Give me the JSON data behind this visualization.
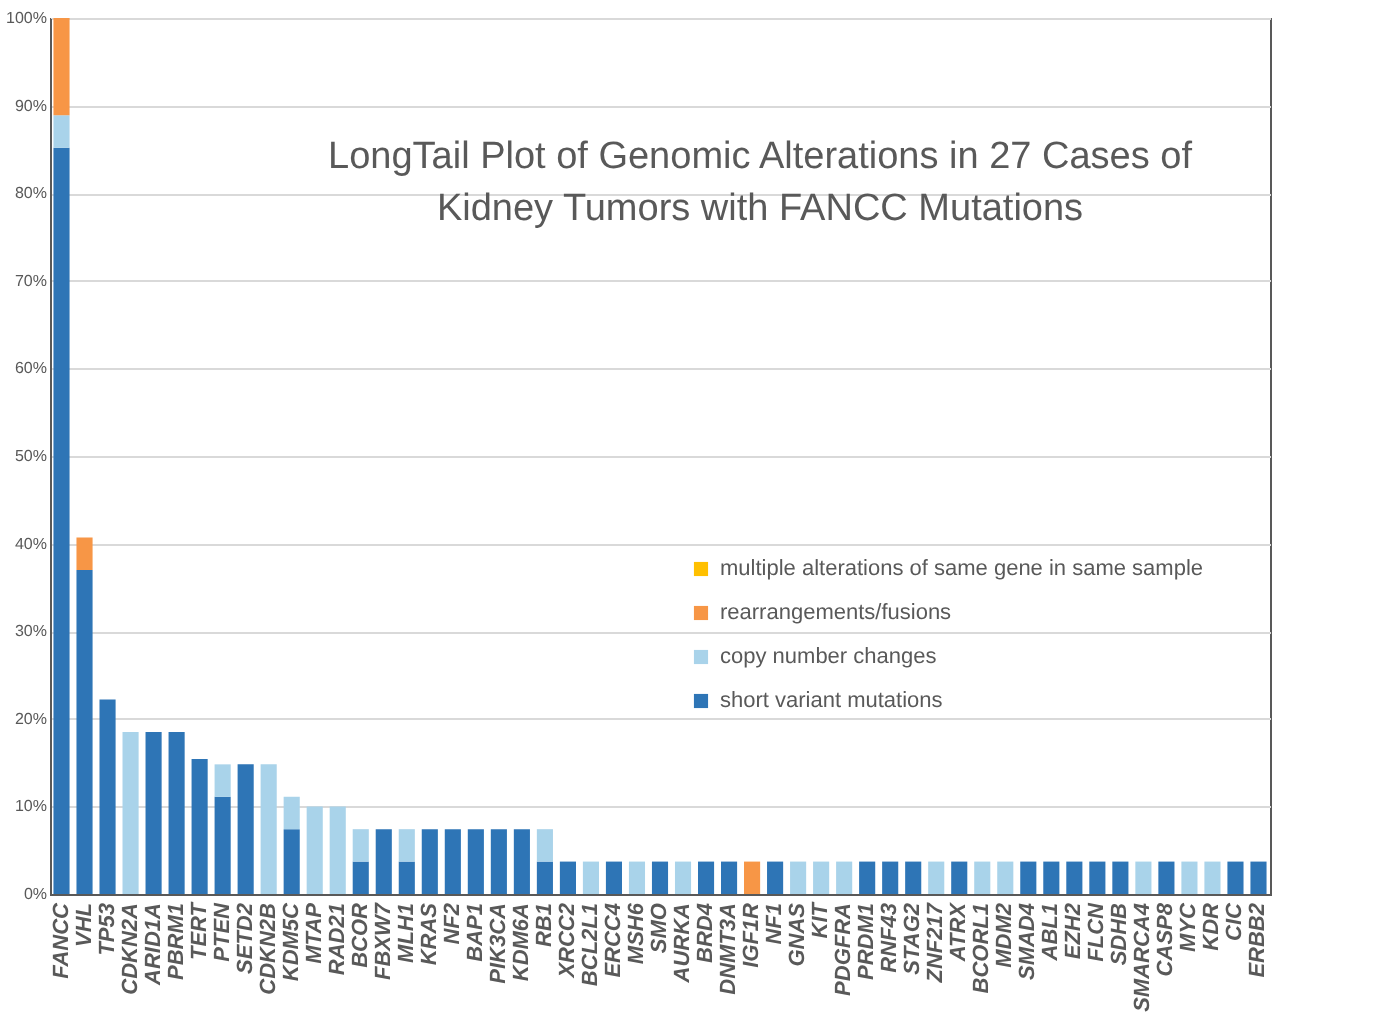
{
  "chart_data": {
    "type": "bar",
    "title": "LongTail Plot of Genomic Alterations in 27 Cases of\nKidney Tumors with FANCC Mutations",
    "categories": [
      "FANCC",
      "VHL",
      "TP53",
      "CDKN2A",
      "ARID1A",
      "PBRM1",
      "TERT",
      "PTEN",
      "SETD2",
      "CDKN2B",
      "KDM5C",
      "MTAP",
      "RAD21",
      "BCOR",
      "FBXW7",
      "MLH1",
      "KRAS",
      "NF2",
      "BAP1",
      "PIK3CA",
      "KDM6A",
      "RB1",
      "XRCC2",
      "BCL2L1",
      "ERCC4",
      "MSH6",
      "SMO",
      "AURKA",
      "BRD4",
      "DNMT3A",
      "IGF1R",
      "NF1",
      "GNAS",
      "KIT",
      "PDGFRA",
      "PRDM1",
      "RNF43",
      "STAG2",
      "ZNF217",
      "ATRX",
      "BCORL1",
      "MDM2",
      "SMAD4",
      "ABL1",
      "EZH2",
      "FLCN",
      "SDHB",
      "SMARCA4",
      "CASP8",
      "MYC",
      "KDR",
      "CIC",
      "ERBB2"
    ],
    "stacked": true,
    "series": [
      {
        "name": "short variant mutations",
        "color": "#2e75b6",
        "values": [
          85.2,
          37.0,
          22.2,
          null,
          18.5,
          18.5,
          15.4,
          11.1,
          14.8,
          null,
          7.4,
          null,
          null,
          3.7,
          7.4,
          3.7,
          7.4,
          7.4,
          7.4,
          7.4,
          7.4,
          3.7,
          3.7,
          null,
          3.7,
          null,
          3.7,
          null,
          3.7,
          3.7,
          null,
          3.7,
          null,
          null,
          null,
          3.7,
          3.7,
          3.7,
          null,
          3.7,
          null,
          null,
          3.7,
          3.7,
          3.7,
          3.7,
          3.7,
          null,
          3.7,
          null,
          null,
          3.7,
          3.7
        ]
      },
      {
        "name": "copy number changes",
        "color": "#a9d3ea",
        "values": [
          3.7,
          null,
          null,
          18.5,
          null,
          null,
          null,
          3.7,
          null,
          14.8,
          3.7,
          10,
          10,
          3.7,
          null,
          3.7,
          null,
          null,
          null,
          null,
          null,
          3.7,
          null,
          3.7,
          null,
          3.7,
          null,
          3.7,
          null,
          null,
          null,
          null,
          3.7,
          3.7,
          3.7,
          null,
          null,
          null,
          3.7,
          null,
          3.7,
          3.7,
          null,
          null,
          null,
          null,
          null,
          3.7,
          null,
          3.7,
          3.7,
          null,
          null
        ]
      },
      {
        "name": "rearrangements/fusions",
        "color": "#f79646",
        "values": [
          11.1,
          3.7,
          null,
          null,
          null,
          null,
          null,
          null,
          null,
          null,
          null,
          null,
          null,
          null,
          null,
          null,
          null,
          null,
          null,
          null,
          null,
          null,
          null,
          null,
          null,
          null,
          null,
          null,
          null,
          null,
          3.7,
          null,
          null,
          null,
          null,
          null,
          null,
          null,
          null,
          null,
          null,
          null,
          null,
          null,
          null,
          null,
          null,
          null,
          null,
          null,
          null,
          null,
          null
        ]
      },
      {
        "name": "multiple alterations of same gene in same sample",
        "color": "#ffc000",
        "values": [
          null,
          null,
          null,
          null,
          null,
          null,
          null,
          null,
          null,
          null,
          null,
          null,
          null,
          null,
          null,
          null,
          null,
          null,
          null,
          null,
          null,
          null,
          null,
          null,
          null,
          null,
          null,
          null,
          null,
          null,
          null,
          null,
          null,
          null,
          null,
          null,
          null,
          null,
          null,
          null,
          null,
          null,
          null,
          null,
          null,
          null,
          null,
          null,
          null,
          null,
          null,
          null,
          null
        ]
      }
    ],
    "ylim": [
      0,
      100
    ],
    "yticks": [
      {
        "value": 0,
        "label": "0%"
      },
      {
        "value": 10,
        "label": "10%"
      },
      {
        "value": 20,
        "label": "20%"
      },
      {
        "value": 30,
        "label": "30%"
      },
      {
        "value": 40,
        "label": "40%"
      },
      {
        "value": 50,
        "label": "50%"
      },
      {
        "value": 60,
        "label": "60%"
      },
      {
        "value": 70,
        "label": "70%"
      },
      {
        "value": 80,
        "label": "80%"
      },
      {
        "value": 90,
        "label": "90%"
      },
      {
        "value": 100,
        "label": "100%"
      }
    ],
    "grid": "y",
    "legend": "right"
  }
}
